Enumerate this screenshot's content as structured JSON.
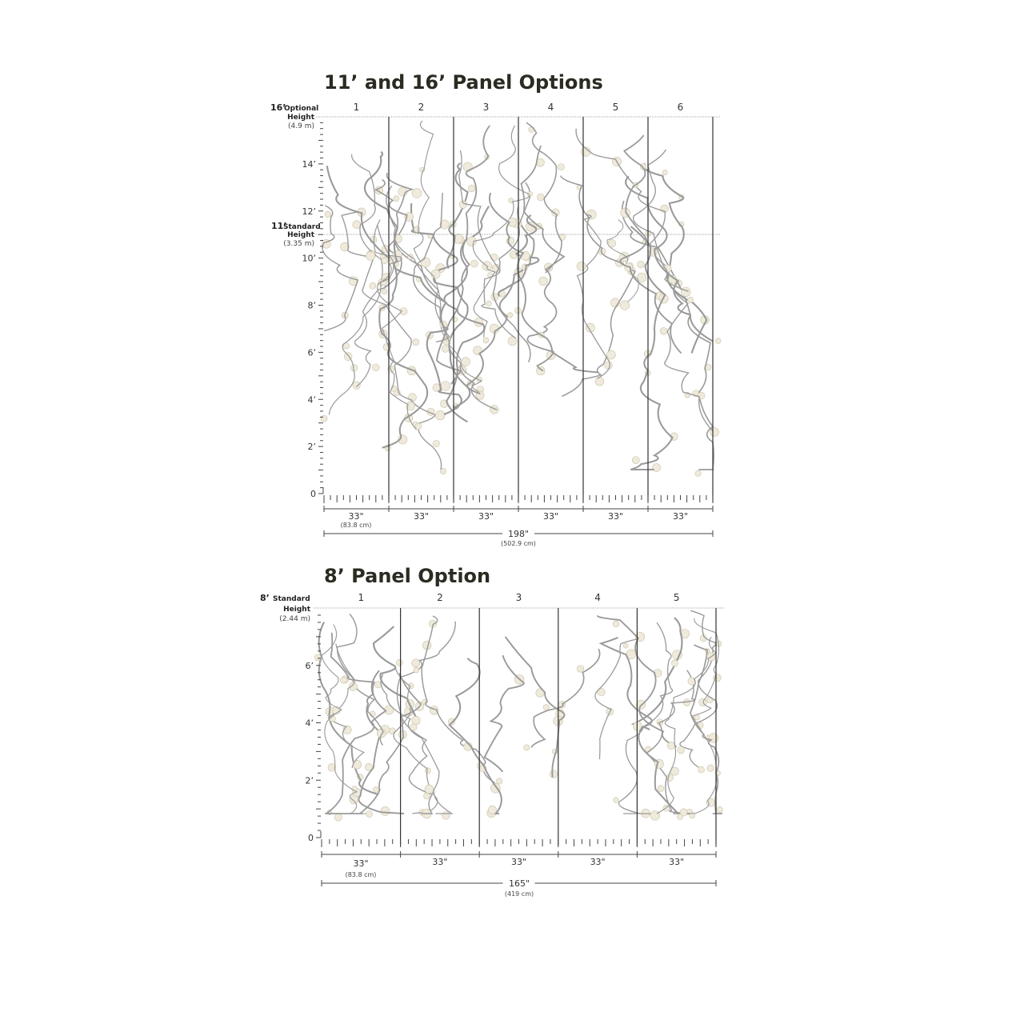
{
  "diagram_top": {
    "title": "11’ and 16’ Panel Options",
    "panels": [
      "1",
      "2",
      "3",
      "4",
      "5",
      "6"
    ],
    "optional_height": {
      "big": "16’",
      "label1": "Optional",
      "label2": "Height",
      "metric": "(4.9 m)"
    },
    "standard_height": {
      "big": "11’",
      "label1": "Standard",
      "label2": "Height",
      "metric": "(3.35 m)"
    },
    "ruler_labels": [
      "14’",
      "12’",
      "10’",
      "8’",
      "6’",
      "4’",
      "2’",
      "0"
    ],
    "panel_width": "33\"",
    "panel_width_metric": "(83.8 cm)",
    "total_width": "198\"",
    "total_width_metric": "(502.9 cm)"
  },
  "diagram_bottom": {
    "title": "8’ Panel Option",
    "panels": [
      "1",
      "2",
      "3",
      "4",
      "5"
    ],
    "standard_height": {
      "big": "8’",
      "label1": "Standard",
      "label2": "Height",
      "metric": "(2.44 m)"
    },
    "ruler_labels": [
      "6’",
      "4’",
      "2’",
      "0"
    ],
    "panel_width": "33\"",
    "panel_width_metric": "(83.8 cm)",
    "total_width": "165\"",
    "total_width_metric": "(419 cm)"
  },
  "colors": {
    "line": "#555555",
    "branch": "#9a9a9a",
    "blossom": "#efeadb",
    "title": "#2b2b22"
  }
}
